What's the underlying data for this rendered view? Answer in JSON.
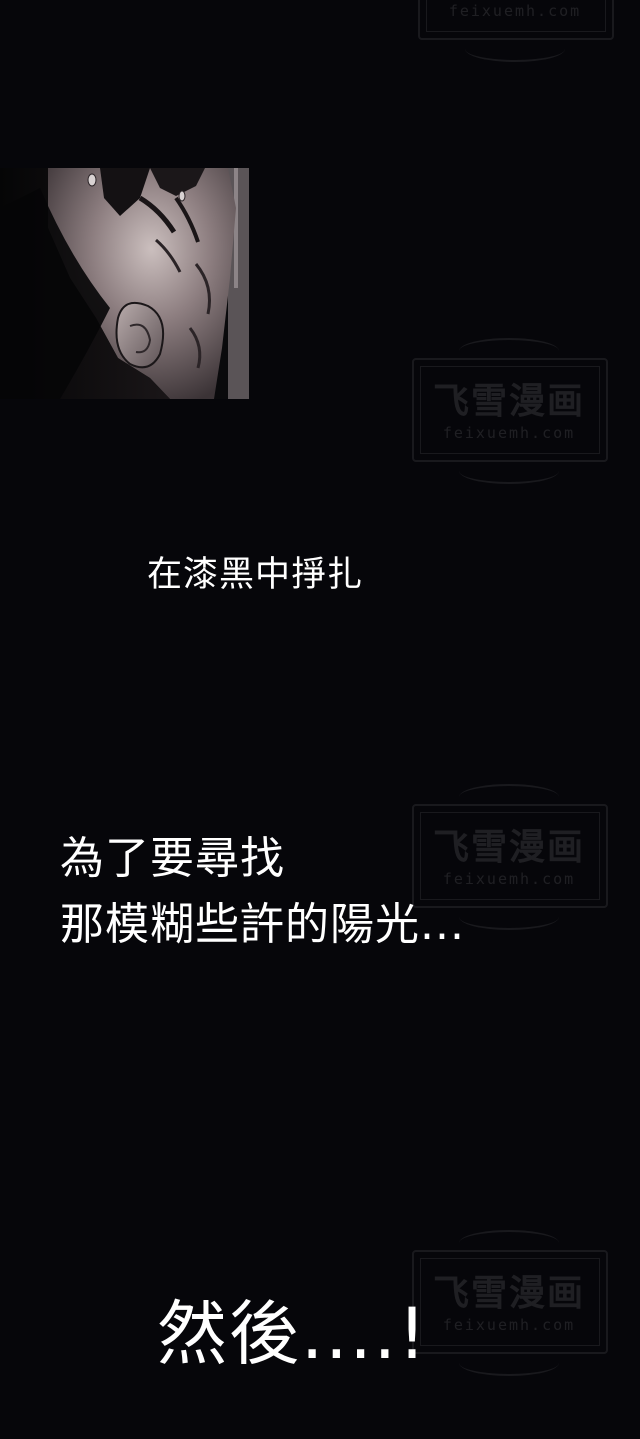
{
  "watermark": {
    "title": "飞雪漫画",
    "url": "feixuemh.com"
  },
  "panel": {
    "icon": "comic-panel-face-in-dark"
  },
  "captions": {
    "line1": "在漆黑中掙扎",
    "line2a": "為了要尋找",
    "line2b": "那模糊些許的陽光...",
    "line3": "然後....!"
  },
  "colors": {
    "background": "#06060a",
    "text": "#ffffff"
  }
}
